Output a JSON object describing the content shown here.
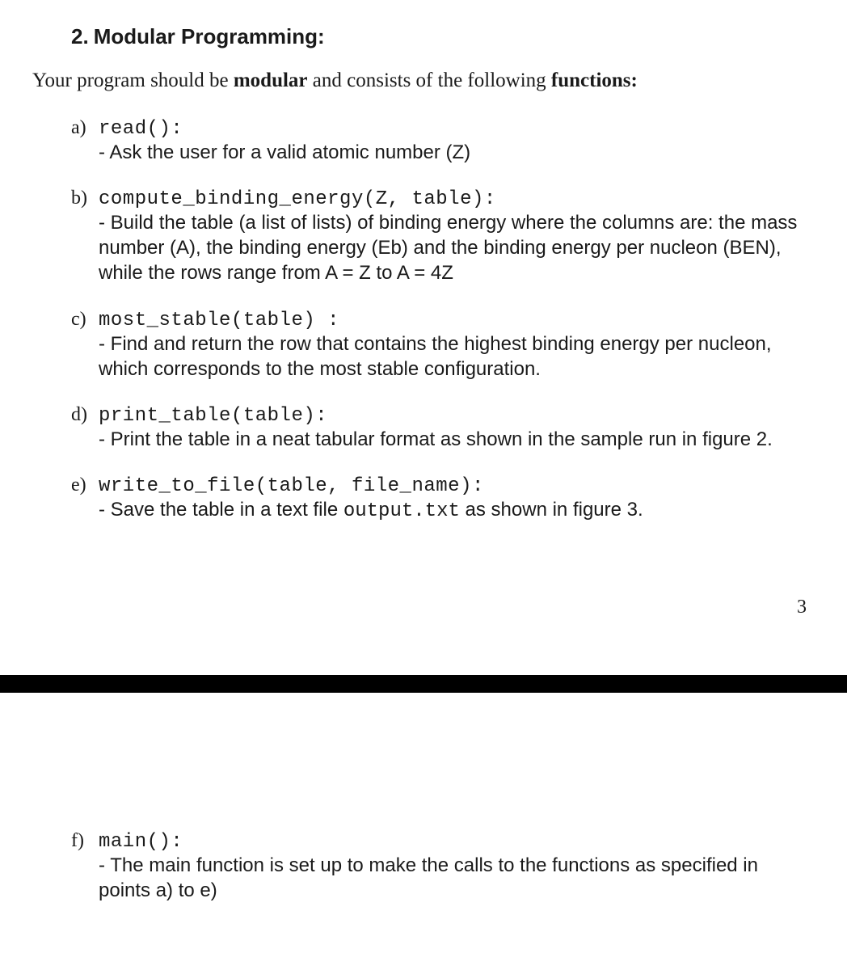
{
  "heading": {
    "number": "2.",
    "title": "Modular Programming:"
  },
  "intro": {
    "before": "Your program should be ",
    "bold1": "modular",
    "mid": " and consists of the following ",
    "bold2": "functions:"
  },
  "functions": {
    "a": {
      "letter": "a)",
      "sig": "read():",
      "body": "- Ask the user for a valid atomic number (Z)"
    },
    "b": {
      "letter": "b)",
      "sig": "compute_binding_energy(Z, table):",
      "body": "- Build the table (a list of lists) of binding energy where the columns are: the mass number (A), the binding energy (Eb) and the binding energy per nucleon (BEN), while the rows range from A = Z to A = 4Z"
    },
    "c": {
      "letter": "c)",
      "sig": "most_stable(table) :",
      "body": "- Find and return the row that contains the highest binding energy per nucleon, which corresponds to the most stable configuration."
    },
    "d": {
      "letter": "d)",
      "sig": "print_table(table):",
      "body": "- Print the table in a neat tabular format as shown in the sample run in figure 2."
    },
    "e": {
      "letter": "e)",
      "sig": "write_to_file(table, file_name):",
      "body_before": "- Save the table in a text file ",
      "body_code": "output.txt",
      "body_after": " as shown in figure 3."
    },
    "f": {
      "letter": "f)",
      "sig": "main():",
      "body": "- The main function is set up to make the calls to the functions as specified in points a) to e)"
    }
  },
  "page_number": "3"
}
